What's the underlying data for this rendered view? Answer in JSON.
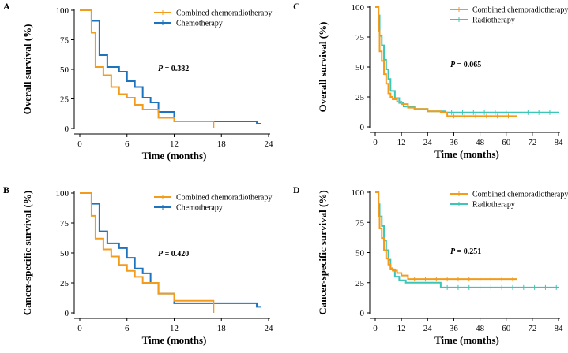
{
  "chart_data": [
    {
      "panel": "A",
      "type": "line",
      "step": true,
      "xlabel": "Time (months)",
      "ylabel": "Overall survival (%)",
      "xlim": [
        0,
        24
      ],
      "ylim": [
        0,
        100
      ],
      "xticks": [
        0,
        6,
        12,
        18,
        24
      ],
      "yticks": [
        0,
        25,
        50,
        75,
        100
      ],
      "pvalue": {
        "prefix": "P",
        "text": " = 0.382"
      },
      "series": [
        {
          "name": "Combined chemoradiotherapy",
          "color": "#F39C1C",
          "x": [
            0,
            1,
            1.5,
            2,
            3,
            4,
            5,
            6,
            7,
            8,
            10,
            12,
            17,
            17
          ],
          "y": [
            100,
            100,
            81,
            52,
            45,
            35,
            29,
            26,
            20,
            16,
            9,
            6,
            6,
            0
          ]
        },
        {
          "name": "Chemotherapy",
          "color": "#1E73BE",
          "x": [
            0,
            1,
            1.5,
            2.5,
            3.5,
            5,
            6,
            7,
            8,
            9,
            10,
            12,
            22,
            22.5,
            23
          ],
          "y": [
            100,
            100,
            91,
            62,
            52,
            48,
            40,
            35,
            26,
            22,
            14,
            6,
            6,
            4,
            4
          ]
        }
      ]
    },
    {
      "panel": "B",
      "type": "line",
      "step": true,
      "xlabel": "Time (months)",
      "ylabel": "Cancer-specific survival (%)",
      "xlim": [
        0,
        24
      ],
      "ylim": [
        0,
        100
      ],
      "xticks": [
        0,
        6,
        12,
        18,
        24
      ],
      "yticks": [
        0,
        25,
        50,
        75,
        100
      ],
      "pvalue": {
        "prefix": "P",
        "text": " = 0.420"
      },
      "series": [
        {
          "name": "Combined chemoradiotherapy",
          "color": "#F39C1C",
          "x": [
            0,
            1,
            1.5,
            2,
            3,
            4,
            5,
            6,
            7,
            8,
            10,
            12,
            17,
            17
          ],
          "y": [
            100,
            100,
            81,
            62,
            53,
            47,
            40,
            35,
            30,
            25,
            16,
            10,
            10,
            0
          ]
        },
        {
          "name": "Chemotherapy",
          "color": "#1E73BE",
          "x": [
            0,
            1,
            1.5,
            2.5,
            3.5,
            5,
            6,
            7,
            8,
            9,
            10,
            12,
            22,
            22.5,
            23
          ],
          "y": [
            100,
            100,
            91,
            68,
            58,
            54,
            46,
            37,
            33,
            25,
            16,
            8,
            8,
            5,
            5
          ]
        }
      ]
    },
    {
      "panel": "C",
      "type": "line",
      "step": true,
      "xlabel": "Time (months)",
      "ylabel": "Overall survival (%)",
      "xlim": [
        0,
        84
      ],
      "ylim": [
        0,
        100
      ],
      "xticks": [
        0,
        12,
        24,
        36,
        48,
        60,
        72,
        84
      ],
      "yticks": [
        0,
        25,
        50,
        75,
        100
      ],
      "pvalue": {
        "prefix": "P",
        "text": " = 0.065"
      },
      "series": [
        {
          "name": "Combined chemoradiotherapy",
          "color": "#F39C1C",
          "x": [
            0,
            1,
            1.5,
            2,
            3,
            4,
            5,
            6,
            7,
            8,
            10,
            12,
            15,
            18,
            24,
            30,
            33,
            65
          ],
          "y": [
            100,
            100,
            80,
            63,
            55,
            44,
            36,
            28,
            25,
            23,
            21,
            19,
            16,
            15,
            13,
            12,
            9,
            9
          ]
        },
        {
          "name": "Radiotherapy",
          "color": "#3CC6B8",
          "x": [
            0,
            1,
            1.5,
            2,
            3,
            4,
            5,
            6,
            7,
            9,
            11,
            13,
            18,
            24,
            32,
            84
          ],
          "y": [
            100,
            100,
            93,
            76,
            68,
            56,
            48,
            40,
            30,
            24,
            20,
            17,
            15,
            13,
            12,
            12
          ]
        }
      ]
    },
    {
      "panel": "D",
      "type": "line",
      "step": true,
      "xlabel": "Time (months)",
      "ylabel": "Cancer-specific survival (%)",
      "xlim": [
        0,
        84
      ],
      "ylim": [
        0,
        100
      ],
      "xticks": [
        0,
        12,
        24,
        36,
        48,
        60,
        72,
        84
      ],
      "yticks": [
        0,
        25,
        50,
        75,
        100
      ],
      "pvalue": {
        "prefix": "P",
        "text": " = 0.251"
      },
      "series": [
        {
          "name": "Combined chemoradiotherapy",
          "color": "#F39C1C",
          "x": [
            0,
            1,
            1.5,
            2,
            3,
            4,
            5,
            6,
            7,
            8,
            10,
            12,
            15,
            65
          ],
          "y": [
            100,
            100,
            80,
            70,
            62,
            52,
            45,
            40,
            37,
            35,
            33,
            31,
            28,
            28
          ]
        },
        {
          "name": "Radiotherapy",
          "color": "#3CC6B8",
          "x": [
            0,
            1,
            1.5,
            2,
            3,
            4,
            5,
            6,
            7,
            9,
            11,
            14,
            22,
            30,
            84
          ],
          "y": [
            100,
            100,
            90,
            80,
            72,
            60,
            52,
            44,
            36,
            30,
            27,
            25,
            25,
            21,
            21
          ]
        }
      ]
    }
  ]
}
